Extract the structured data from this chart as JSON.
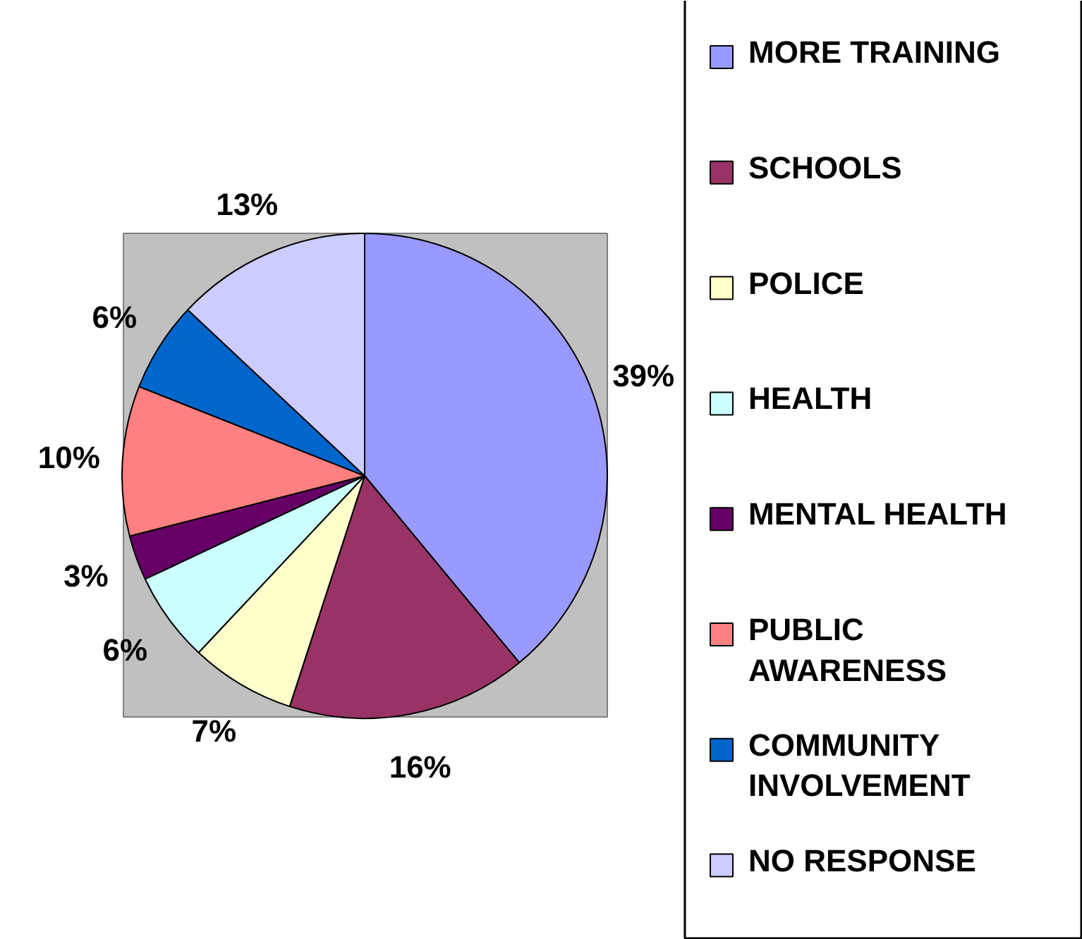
{
  "chart_data": {
    "type": "pie",
    "categories": [
      "MORE TRAINING",
      "SCHOOLS",
      "POLICE",
      "HEALTH",
      "MENTAL HEALTH",
      "PUBLIC AWARENESS",
      "COMMUNITY INVOLVEMENT",
      "NO RESPONSE"
    ],
    "values": [
      39,
      16,
      7,
      6,
      3,
      10,
      6,
      13
    ],
    "colors": [
      "#9999ff",
      "#993366",
      "#ffffcc",
      "#ccffff",
      "#660066",
      "#ff8080",
      "#0066cc",
      "#ccccff"
    ],
    "value_labels": [
      "39%",
      "16%",
      "7%",
      "6%",
      "3%",
      "10%",
      "6%",
      "13%"
    ],
    "legend": "right"
  }
}
